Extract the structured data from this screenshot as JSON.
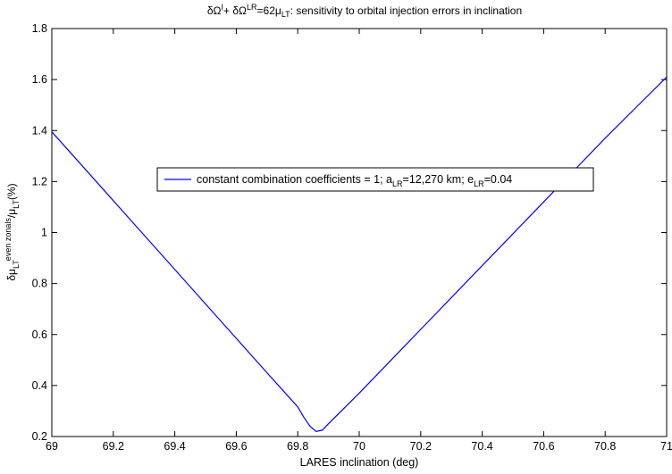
{
  "chart_data": {
    "type": "line",
    "title": {
      "parts": [
        "δΩ",
        "I",
        "+ δΩ",
        "LR",
        "=62μ",
        "LT",
        ": sensitivity to orbital injection errors in inclination"
      ]
    },
    "xlabel": "LARES inclination (deg)",
    "ylabel": {
      "parts": [
        "δμ",
        "LT",
        "even zonals",
        "/μ",
        "LT",
        "(%)"
      ]
    },
    "xlim": [
      69,
      71
    ],
    "ylim": [
      0.2,
      1.8
    ],
    "x_ticks": [
      "69",
      "69.2",
      "69.4",
      "69.6",
      "69.8",
      "70",
      "70.2",
      "70.4",
      "70.6",
      "70.8",
      "71"
    ],
    "y_ticks": [
      "0.2",
      "0.4",
      "0.6",
      "0.8",
      "1",
      "1.2",
      "1.4",
      "1.6",
      "1.8"
    ],
    "grid": false,
    "legend_position": "center",
    "series": [
      {
        "name": "constant combination coefficients = 1; a_LR=12,270 km; e_LR=0.04",
        "legend_parts": [
          "constant combination coefficients = 1; a",
          "LR",
          "=12,270 km; e",
          "LR",
          "=0.04"
        ],
        "color": "#0000ff",
        "x": [
          69.0,
          69.1,
          69.2,
          69.3,
          69.4,
          69.5,
          69.6,
          69.7,
          69.75,
          69.8,
          69.82,
          69.84,
          69.86,
          69.88,
          69.9,
          69.95,
          70.0,
          70.1,
          70.2,
          70.3,
          70.4,
          70.5,
          70.6,
          70.7,
          70.8,
          70.9,
          71.0
        ],
        "y": [
          1.395,
          1.26,
          1.125,
          0.99,
          0.855,
          0.72,
          0.585,
          0.45,
          0.383,
          0.316,
          0.275,
          0.24,
          0.22,
          0.225,
          0.25,
          0.31,
          0.37,
          0.495,
          0.62,
          0.745,
          0.87,
          0.995,
          1.12,
          1.245,
          1.37,
          1.49,
          1.61
        ]
      }
    ]
  }
}
